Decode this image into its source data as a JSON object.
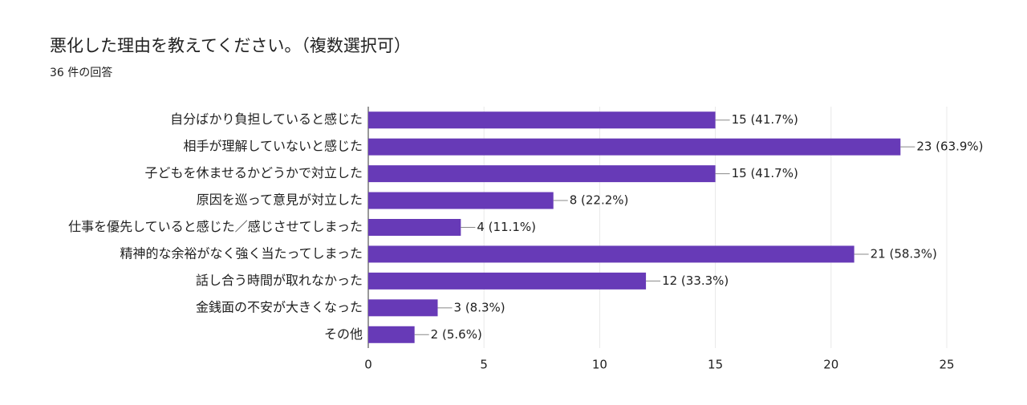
{
  "chart_data": {
    "type": "bar",
    "orientation": "horizontal",
    "title": "悪化した理由を教えてください。（複数選択可）",
    "subtitle": "36 件の回答",
    "categories": [
      "自分ばかり負担していると感じた",
      "相手が理解していないと感じた",
      "子どもを休ませるかどうかで対立した",
      "原因を巡って意見が対立した",
      "仕事を優先していると感じた／感じさせてしまった",
      "精神的な余裕がなく強く当たってしまった",
      "話し合う時間が取れなかった",
      "金銭面の不安が大きくなった",
      "その他"
    ],
    "values": [
      15,
      23,
      15,
      8,
      4,
      21,
      12,
      3,
      2
    ],
    "value_labels": [
      "15 (41.7%)",
      "23 (63.9%)",
      "15 (41.7%)",
      "8 (22.2%)",
      "4 (11.1%)",
      "21 (58.3%)",
      "12 (33.3%)",
      "3 (8.3%)",
      "2 (5.6%)"
    ],
    "color": "#673ab7",
    "xlim": [
      0,
      25
    ],
    "xticks": [
      0,
      5,
      10,
      15,
      20,
      25
    ],
    "grid": true
  }
}
